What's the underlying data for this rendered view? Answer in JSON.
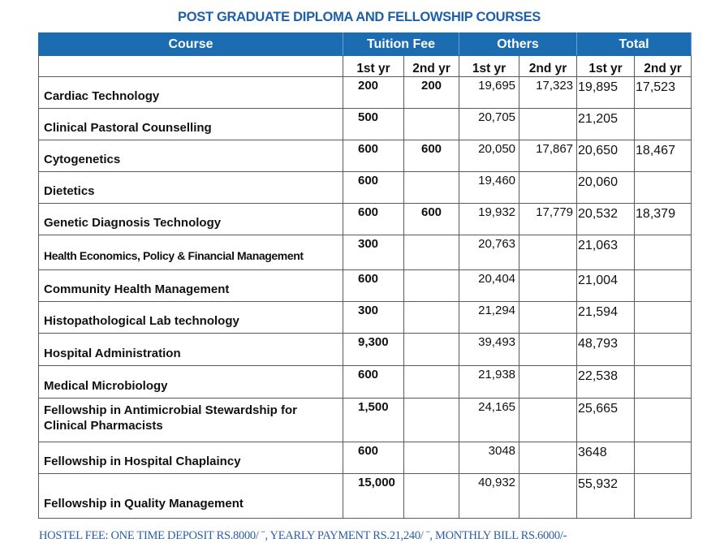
{
  "title": "POST GRADUATE DIPLOMA AND FELLOWSHIP COURSES",
  "headers": {
    "course": "Course",
    "tuition": "Tuition Fee",
    "others": "Others",
    "total": "Total",
    "yr1": "1st yr",
    "yr2": "2nd yr"
  },
  "rows": [
    {
      "course": "Cardiac Technology",
      "t1": "200",
      "t2": "200",
      "o1": "19,695",
      "o2": "17,323",
      "s1": "19,895",
      "s2": "17,523"
    },
    {
      "course": "Clinical Pastoral Counselling",
      "t1": "500",
      "t2": "",
      "o1": "20,705",
      "o2": "",
      "s1": "21,205",
      "s2": ""
    },
    {
      "course": "Cytogenetics",
      "t1": "600",
      "t2": "600",
      "o1": "20,050",
      "o2": "17,867",
      "s1": "20,650",
      "s2": "18,467"
    },
    {
      "course": "Dietetics",
      "t1": "600",
      "t2": "",
      "o1": "19,460",
      "o2": "",
      "s1": "20,060",
      "s2": ""
    },
    {
      "course": "Genetic Diagnosis Technology",
      "t1": "600",
      "t2": "600",
      "o1": "19,932",
      "o2": "17,779",
      "s1": "20,532",
      "s2": "18,379"
    },
    {
      "course": "Health Economics, Policy & Financial Management",
      "t1": "300",
      "t2": "",
      "o1": "20,763",
      "o2": "",
      "s1": "21,063",
      "s2": ""
    },
    {
      "course": "Community Health Management",
      "t1": "600",
      "t2": "",
      "o1": "20,404",
      "o2": "",
      "s1": "21,004",
      "s2": ""
    },
    {
      "course": "Histopathological Lab technology",
      "t1": "300",
      "t2": "",
      "o1": "21,294",
      "o2": "",
      "s1": "21,594",
      "s2": ""
    },
    {
      "course": "Hospital Administration",
      "t1": "9,300",
      "t2": "",
      "o1": "39,493",
      "o2": "",
      "s1": "48,793",
      "s2": ""
    },
    {
      "course": "Medical Microbiology",
      "t1": "600",
      "t2": "",
      "o1": "21,938",
      "o2": "",
      "s1": "22,538",
      "s2": ""
    },
    {
      "course": "Fellowship in Antimicrobial Stewardship for Clinical Pharmacists",
      "t1": "1,500",
      "t2": "",
      "o1": "24,165",
      "o2": "",
      "s1": "25,665",
      "s2": ""
    },
    {
      "course": "Fellowship in Hospital Chaplaincy",
      "t1": "600",
      "t2": "",
      "o1": "3048",
      "o2": "",
      "s1": "3648",
      "s2": ""
    },
    {
      "course": "Fellowship in Quality Management",
      "t1": "15,000",
      "t2": "",
      "o1": "40,932",
      "o2": "",
      "s1": "55,932",
      "s2": ""
    }
  ],
  "footer": "HOSTEL FEE: ONE TIME DEPOSIT RS.8000/ ˉ, YEARLY PAYMENT RS.21,240/ ˉ, MONTHLY BILL RS.6000/-",
  "colors": {
    "header_bg": "#1c6cb2",
    "title": "#1d5fa8"
  }
}
